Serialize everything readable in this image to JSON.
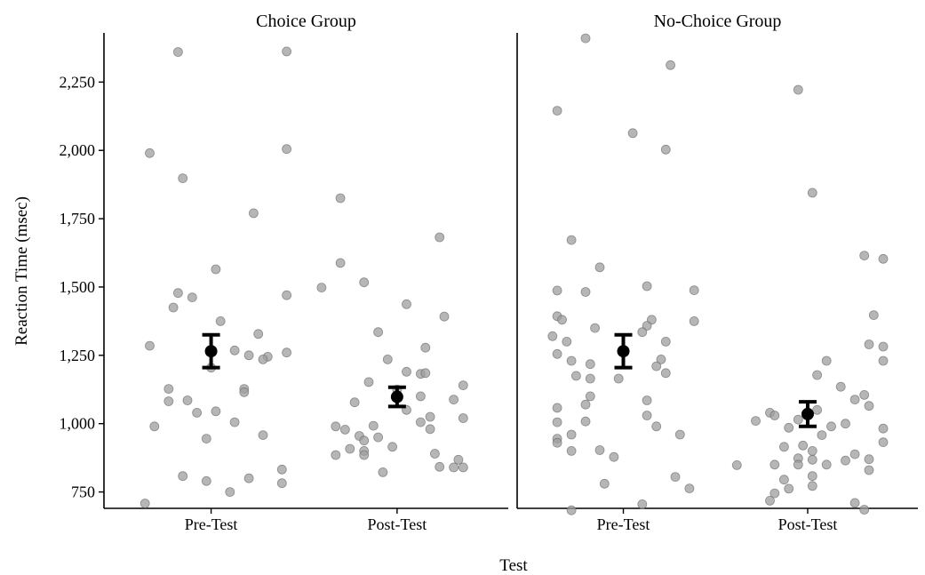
{
  "chart_data": {
    "type": "scatter",
    "subtype": "jittered strip plot with mean and error bars, faceted",
    "xlabel": "Test",
    "ylabel": "Reaction Time (msec)",
    "ylim": [
      690,
      2430
    ],
    "y_ticks": [
      750,
      1000,
      1250,
      1500,
      1750,
      2000,
      2250
    ],
    "y_tick_labels": [
      "750",
      "1,000",
      "1,250",
      "1,500",
      "1,750",
      "2,000",
      "2,250"
    ],
    "categories": [
      "Pre-Test",
      "Post-Test"
    ],
    "grid": false,
    "legend": "none",
    "colors": {
      "point": "#9e9e9e",
      "point_stroke": "#6b6b6b",
      "mean": "#000000",
      "axis": "#000000"
    },
    "panels": [
      {
        "title": "Choice Group",
        "groups": [
          {
            "category": "Pre-Test",
            "mean": 1265,
            "error_low": 1205,
            "error_high": 1325,
            "points": [
              [
                -0.07,
                2360
              ],
              [
                0.16,
                2362
              ],
              [
                -0.13,
                1990
              ],
              [
                -0.06,
                1898
              ],
              [
                0.16,
                2005
              ],
              [
                0.09,
                1770
              ],
              [
                0.01,
                1565
              ],
              [
                -0.07,
                1478
              ],
              [
                -0.04,
                1462
              ],
              [
                0.16,
                1470
              ],
              [
                -0.08,
                1425
              ],
              [
                0.02,
                1375
              ],
              [
                0.1,
                1328
              ],
              [
                -0.13,
                1285
              ],
              [
                0.05,
                1268
              ],
              [
                0.08,
                1250
              ],
              [
                0.12,
                1245
              ],
              [
                0.16,
                1260
              ],
              [
                0.11,
                1235
              ],
              [
                0.0,
                1205
              ],
              [
                0.07,
                1127
              ],
              [
                0.07,
                1115
              ],
              [
                -0.09,
                1127
              ],
              [
                -0.09,
                1082
              ],
              [
                -0.05,
                1085
              ],
              [
                0.01,
                1045
              ],
              [
                -0.03,
                1040
              ],
              [
                0.05,
                1005
              ],
              [
                -0.12,
                990
              ],
              [
                0.11,
                958
              ],
              [
                -0.01,
                945
              ],
              [
                0.15,
                832
              ],
              [
                -0.06,
                808
              ],
              [
                -0.01,
                790
              ],
              [
                0.08,
                800
              ],
              [
                0.15,
                782
              ],
              [
                0.04,
                750
              ],
              [
                -0.14,
                708
              ]
            ]
          },
          {
            "category": "Post-Test",
            "mean": 1098,
            "error_low": 1063,
            "error_high": 1133,
            "points": [
              [
                -0.12,
                1825
              ],
              [
                0.09,
                1682
              ],
              [
                -0.12,
                1588
              ],
              [
                -0.07,
                1517
              ],
              [
                -0.16,
                1498
              ],
              [
                0.02,
                1437
              ],
              [
                0.1,
                1392
              ],
              [
                -0.04,
                1335
              ],
              [
                0.06,
                1278
              ],
              [
                -0.02,
                1235
              ],
              [
                0.02,
                1190
              ],
              [
                0.05,
                1182
              ],
              [
                0.06,
                1185
              ],
              [
                -0.06,
                1152
              ],
              [
                0.14,
                1140
              ],
              [
                0.0,
                1125
              ],
              [
                0.05,
                1100
              ],
              [
                0.12,
                1088
              ],
              [
                -0.09,
                1078
              ],
              [
                0.02,
                1050
              ],
              [
                0.07,
                1025
              ],
              [
                0.05,
                1005
              ],
              [
                0.14,
                1020
              ],
              [
                -0.05,
                992
              ],
              [
                -0.13,
                990
              ],
              [
                -0.11,
                978
              ],
              [
                0.07,
                980
              ],
              [
                -0.08,
                955
              ],
              [
                -0.04,
                950
              ],
              [
                -0.07,
                938
              ],
              [
                -0.1,
                908
              ],
              [
                -0.07,
                900
              ],
              [
                -0.01,
                915
              ],
              [
                -0.07,
                885
              ],
              [
                -0.13,
                885
              ],
              [
                0.08,
                890
              ],
              [
                0.13,
                868
              ],
              [
                0.12,
                840
              ],
              [
                0.09,
                842
              ],
              [
                0.14,
                840
              ],
              [
                -0.03,
                822
              ]
            ]
          }
        ]
      },
      {
        "title": "No-Choice Group",
        "groups": [
          {
            "category": "Pre-Test",
            "mean": 1265,
            "error_low": 1205,
            "error_high": 1325,
            "points": [
              [
                -0.08,
                2410
              ],
              [
                0.1,
                2312
              ],
              [
                -0.14,
                2145
              ],
              [
                0.02,
                2063
              ],
              [
                0.09,
                2003
              ],
              [
                -0.11,
                1672
              ],
              [
                -0.05,
                1572
              ],
              [
                -0.14,
                1487
              ],
              [
                -0.08,
                1482
              ],
              [
                0.05,
                1503
              ],
              [
                0.15,
                1488
              ],
              [
                -0.14,
                1393
              ],
              [
                -0.13,
                1380
              ],
              [
                -0.15,
                1320
              ],
              [
                -0.06,
                1350
              ],
              [
                0.06,
                1380
              ],
              [
                0.05,
                1358
              ],
              [
                0.15,
                1375
              ],
              [
                0.04,
                1335
              ],
              [
                -0.12,
                1300
              ],
              [
                -0.14,
                1255
              ],
              [
                0.09,
                1300
              ],
              [
                -0.11,
                1230
              ],
              [
                -0.07,
                1218
              ],
              [
                0.08,
                1235
              ],
              [
                0.07,
                1210
              ],
              [
                -0.1,
                1175
              ],
              [
                -0.07,
                1165
              ],
              [
                -0.01,
                1165
              ],
              [
                0.09,
                1185
              ],
              [
                -0.07,
                1100
              ],
              [
                -0.08,
                1070
              ],
              [
                0.05,
                1085
              ],
              [
                -0.14,
                1058
              ],
              [
                0.05,
                1030
              ],
              [
                -0.14,
                1005
              ],
              [
                -0.08,
                1008
              ],
              [
                0.07,
                990
              ],
              [
                -0.11,
                960
              ],
              [
                0.12,
                960
              ],
              [
                -0.14,
                945
              ],
              [
                -0.14,
                930
              ],
              [
                -0.11,
                900
              ],
              [
                -0.05,
                903
              ],
              [
                -0.02,
                878
              ],
              [
                0.11,
                805
              ],
              [
                -0.04,
                780
              ],
              [
                0.14,
                763
              ],
              [
                0.04,
                705
              ],
              [
                -0.11,
                683
              ]
            ]
          },
          {
            "category": "Post-Test",
            "mean": 1035,
            "error_low": 990,
            "error_high": 1080,
            "points": [
              [
                -0.02,
                2222
              ],
              [
                0.01,
                1845
              ],
              [
                0.12,
                1615
              ],
              [
                0.16,
                1603
              ],
              [
                0.14,
                1397
              ],
              [
                0.13,
                1290
              ],
              [
                0.16,
                1282
              ],
              [
                0.04,
                1230
              ],
              [
                0.16,
                1230
              ],
              [
                0.02,
                1178
              ],
              [
                0.07,
                1135
              ],
              [
                0.12,
                1105
              ],
              [
                0.1,
                1088
              ],
              [
                -0.08,
                1040
              ],
              [
                -0.07,
                1030
              ],
              [
                -0.02,
                1015
              ],
              [
                0.13,
                1065
              ],
              [
                0.02,
                1050
              ],
              [
                -0.11,
                1010
              ],
              [
                0.08,
                1000
              ],
              [
                0.05,
                990
              ],
              [
                -0.04,
                985
              ],
              [
                0.16,
                982
              ],
              [
                0.03,
                958
              ],
              [
                0.16,
                932
              ],
              [
                -0.01,
                920
              ],
              [
                -0.05,
                915
              ],
              [
                0.01,
                900
              ],
              [
                0.1,
                888
              ],
              [
                -0.02,
                873
              ],
              [
                0.08,
                865
              ],
              [
                0.01,
                868
              ],
              [
                0.13,
                870
              ],
              [
                -0.02,
                850
              ],
              [
                -0.07,
                850
              ],
              [
                -0.15,
                848
              ],
              [
                0.04,
                850
              ],
              [
                0.13,
                830
              ],
              [
                0.01,
                808
              ],
              [
                -0.05,
                795
              ],
              [
                -0.04,
                762
              ],
              [
                -0.07,
                745
              ],
              [
                0.01,
                772
              ],
              [
                -0.08,
                718
              ],
              [
                0.1,
                710
              ],
              [
                0.12,
                685
              ]
            ]
          }
        ]
      }
    ]
  }
}
